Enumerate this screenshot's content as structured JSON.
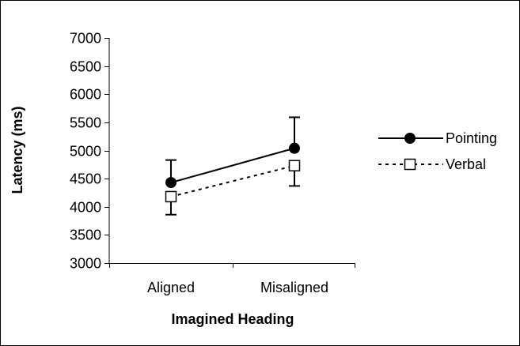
{
  "chart_data": {
    "type": "line",
    "categories": [
      "Aligned",
      "Misaligned"
    ],
    "xlabel": "Imagined Heading",
    "ylabel": "Latency (ms)",
    "ylim": [
      3000,
      7000
    ],
    "yticks": [
      3000,
      3500,
      4000,
      4500,
      5000,
      5500,
      6000,
      6500,
      7000
    ],
    "grid": false,
    "legend_position": "right",
    "series": [
      {
        "name": "Pointing",
        "values": [
          4430,
          5040
        ],
        "error": [
          400,
          550
        ],
        "marker": "filled-circle",
        "line_style": "solid",
        "color": "#000000",
        "error_direction": "up"
      },
      {
        "name": "Verbal",
        "values": [
          4180,
          4730
        ],
        "error": [
          320,
          360
        ],
        "marker": "open-square",
        "line_style": "dashed",
        "color": "#000000",
        "error_direction": "down"
      }
    ]
  }
}
